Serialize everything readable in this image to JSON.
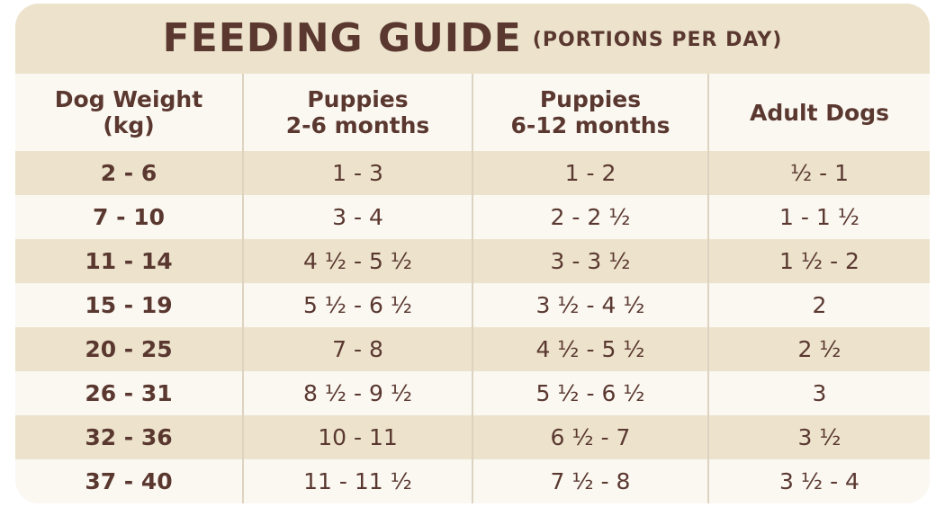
{
  "title": {
    "main": "FEEDING GUIDE",
    "sub": "(PORTIONS PER DAY)"
  },
  "headers": [
    {
      "line1": "Dog Weight",
      "line2": "(kg)"
    },
    {
      "line1": "Puppies",
      "line2": "2-6 months"
    },
    {
      "line1": "Puppies",
      "line2": "6-12 months"
    },
    {
      "line1": "Adult Dogs",
      "line2": ""
    }
  ],
  "rows": [
    [
      "2 - 6",
      "1 - 3",
      "1 - 2",
      "½ - 1"
    ],
    [
      "7 - 10",
      "3 - 4",
      "2 - 2 ½",
      "1 - 1 ½"
    ],
    [
      "11 - 14",
      "4 ½ - 5 ½",
      "3 - 3 ½",
      "1 ½ - 2"
    ],
    [
      "15 - 19",
      "5 ½ - 6 ½",
      "3 ½ - 4 ½",
      "2"
    ],
    [
      "20 - 25",
      "7 - 8",
      "4 ½ - 5 ½",
      "2 ½"
    ],
    [
      "26 - 31",
      "8 ½ - 9 ½",
      "5 ½ - 6 ½",
      "3"
    ],
    [
      "32 - 36",
      "10 - 11",
      "6 ½ - 7",
      "3 ½"
    ],
    [
      "37 - 40",
      "11 - 11 ½",
      "7 ½ - 8",
      "3 ½ - 4"
    ]
  ],
  "colors": {
    "text": "#5a3830",
    "band": "#ede3cc",
    "background": "#fbf8f2",
    "divider": "#ddd3c0"
  }
}
